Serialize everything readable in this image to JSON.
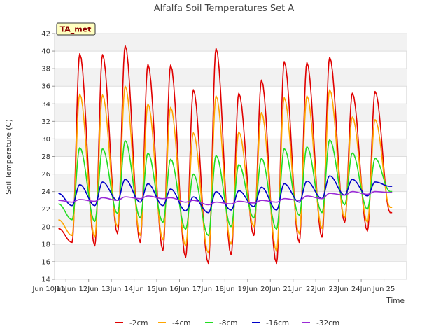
{
  "chart_data": {
    "type": "line",
    "title": "Alfalfa Soil Temperatures Set A",
    "xlabel": "Time",
    "ylabel": "Soil Temperature (C)",
    "badge": "TA_met",
    "xlim": [
      9.5,
      25
    ],
    "ylim": [
      14,
      42
    ],
    "yticks": [
      14,
      16,
      18,
      20,
      22,
      24,
      26,
      28,
      30,
      32,
      34,
      36,
      38,
      40,
      42
    ],
    "xticks": [
      {
        "x": 9,
        "label": "Jun 10Jun"
      },
      {
        "x": 10,
        "label": "11Jun"
      },
      {
        "x": 11,
        "label": "12Jun"
      },
      {
        "x": 12,
        "label": "13Jun"
      },
      {
        "x": 13,
        "label": "14Jun"
      },
      {
        "x": 14,
        "label": "15Jun"
      },
      {
        "x": 15,
        "label": "16Jun"
      },
      {
        "x": 16,
        "label": "17Jun"
      },
      {
        "x": 17,
        "label": "18Jun"
      },
      {
        "x": 18,
        "label": "19Jun"
      },
      {
        "x": 19,
        "label": "20Jun"
      },
      {
        "x": 20,
        "label": "21Jun"
      },
      {
        "x": 21,
        "label": "22Jun"
      },
      {
        "x": 22,
        "label": "23Jun"
      },
      {
        "x": 23,
        "label": "24Jun"
      },
      {
        "x": 24,
        "label": "Jun 25"
      }
    ],
    "days": [
      10,
      11,
      12,
      13,
      14,
      15,
      16,
      17,
      18,
      19,
      20,
      21,
      22,
      23,
      24
    ],
    "series": [
      {
        "name": "-2cm",
        "color": "#e00000",
        "width": 1.6,
        "start": 19.8,
        "end": 21.6,
        "daily_min": [
          18.2,
          17.8,
          19.2,
          18.2,
          17.3,
          16.5,
          15.8,
          16.8,
          19.0,
          15.8,
          18.2,
          18.8,
          20.5,
          19.5,
          21.6
        ],
        "daily_max": [
          39.7,
          39.6,
          40.6,
          38.5,
          38.4,
          35.6,
          40.3,
          35.2,
          36.7,
          38.8,
          38.7,
          39.3,
          35.2,
          35.4
        ]
      },
      {
        "name": "-4cm",
        "color": "#ffa500",
        "width": 1.6,
        "start": 20.8,
        "end": 22.2,
        "daily_min": [
          19.0,
          18.8,
          20.0,
          19.0,
          18.5,
          17.8,
          17.0,
          18.0,
          20.0,
          17.2,
          19.2,
          19.8,
          21.0,
          20.5,
          22.2
        ],
        "daily_max": [
          35.1,
          35.0,
          36.0,
          34.0,
          33.6,
          30.7,
          34.9,
          30.8,
          33.0,
          34.7,
          34.9,
          35.6,
          32.5,
          32.2
        ]
      },
      {
        "name": "-8cm",
        "color": "#22dd22",
        "width": 1.6,
        "start": 22.6,
        "end": 24.0,
        "daily_min": [
          20.8,
          20.6,
          21.5,
          21.0,
          20.5,
          19.7,
          19.0,
          20.0,
          21.0,
          19.7,
          21.3,
          21.6,
          22.5,
          22.0,
          24.0
        ],
        "daily_max": [
          29.0,
          28.9,
          29.8,
          28.4,
          27.7,
          26.0,
          28.1,
          27.1,
          27.8,
          28.9,
          29.1,
          29.9,
          28.4,
          27.8
        ]
      },
      {
        "name": "-16cm",
        "color": "#0000c8",
        "width": 1.6,
        "start": 23.8,
        "end": 24.6,
        "daily_min": [
          22.4,
          22.4,
          23.0,
          22.8,
          22.4,
          21.8,
          21.6,
          21.9,
          22.3,
          21.9,
          22.8,
          23.2,
          23.6,
          23.5,
          24.6
        ],
        "daily_max": [
          24.8,
          25.1,
          25.4,
          24.9,
          24.3,
          23.4,
          24.0,
          24.1,
          24.5,
          24.9,
          25.2,
          25.8,
          25.4,
          25.1
        ]
      },
      {
        "name": "-32cm",
        "color": "#9a2bd6",
        "width": 1.6,
        "start": 23.0,
        "end": 23.9,
        "daily_min": [
          22.8,
          22.9,
          23.0,
          23.2,
          23.2,
          22.8,
          22.5,
          22.6,
          22.7,
          22.8,
          23.0,
          23.2,
          23.6,
          23.7,
          23.9
        ],
        "daily_max": [
          23.1,
          23.3,
          23.4,
          23.5,
          23.3,
          23.0,
          22.8,
          22.9,
          23.0,
          23.2,
          23.5,
          23.8,
          24.0,
          24.0
        ]
      }
    ]
  }
}
